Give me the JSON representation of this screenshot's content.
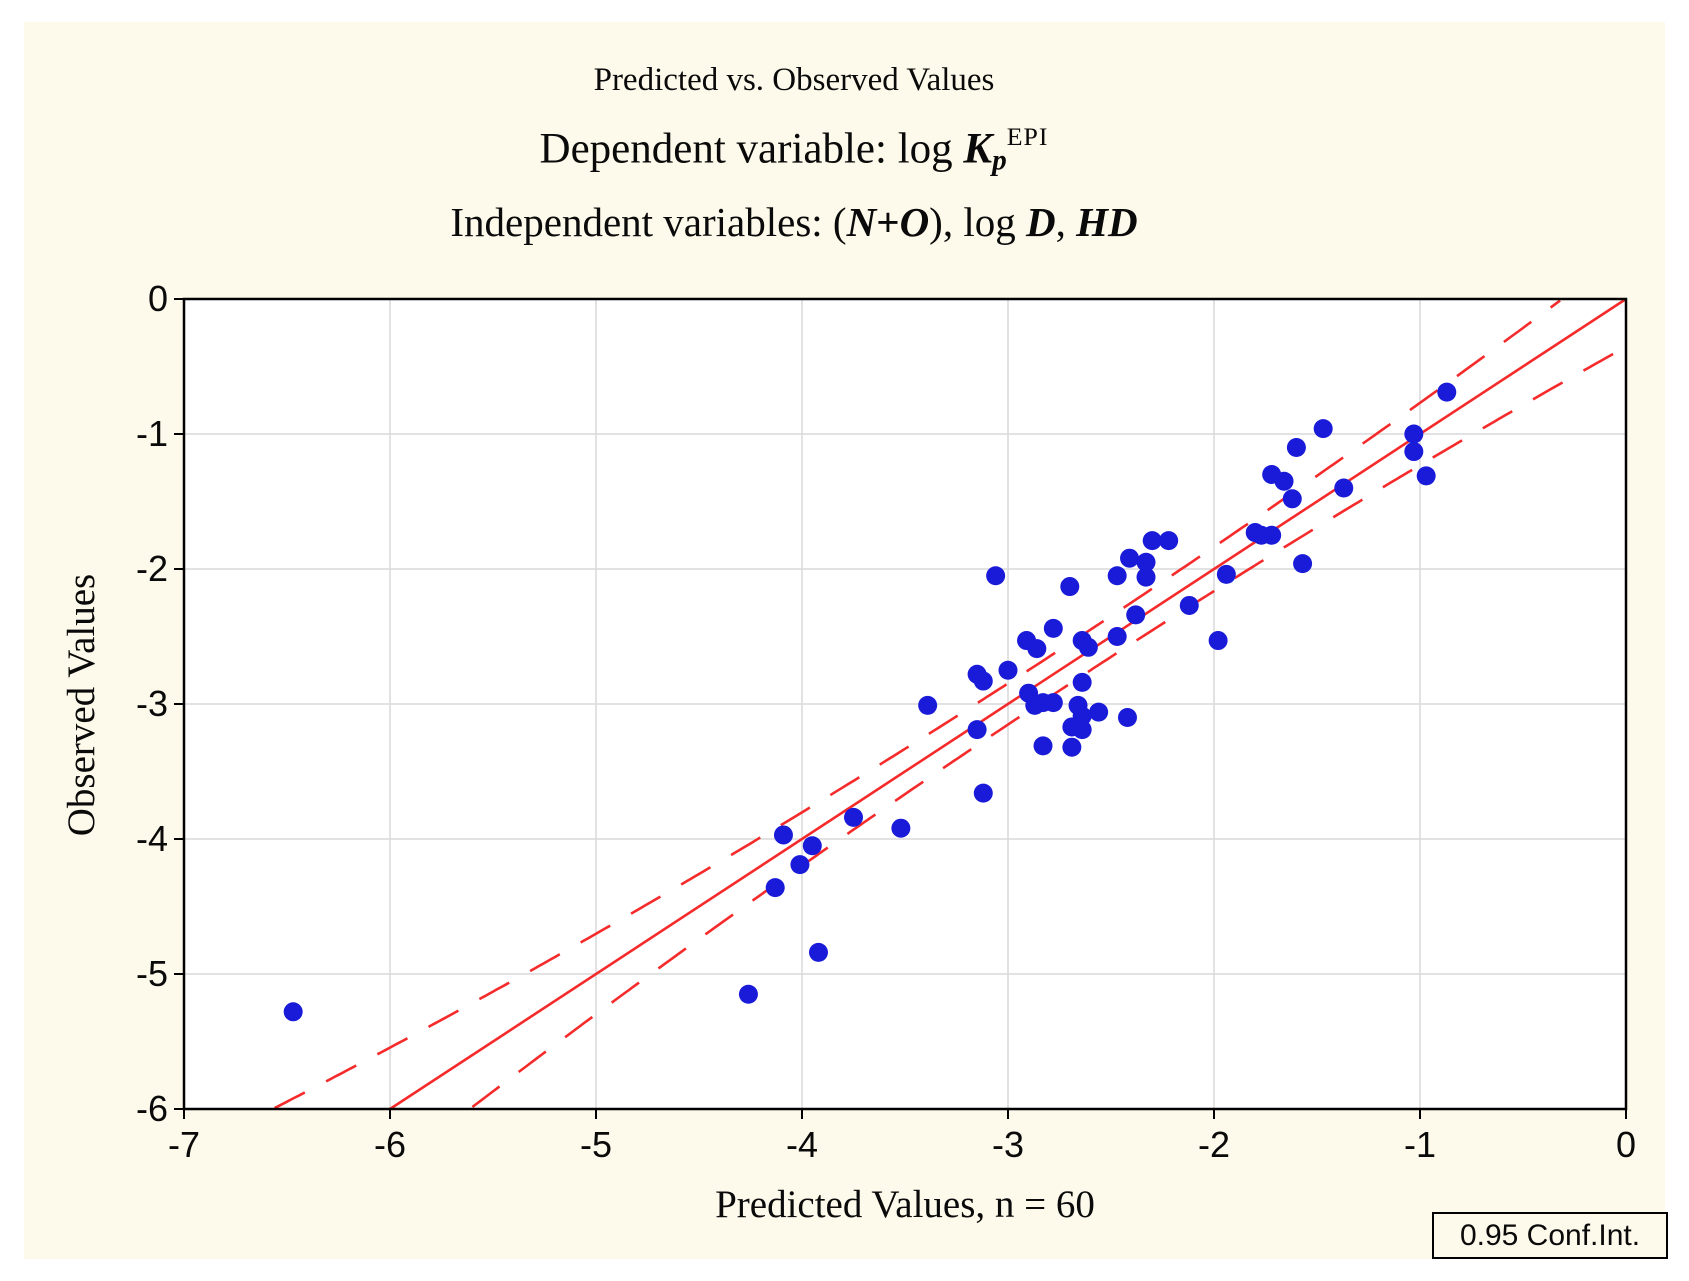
{
  "page": {
    "background": "#ffffff",
    "panel_background": "#FDF9EB"
  },
  "titles": {
    "line1": "Predicted vs. Observed Values",
    "line2_segments": [
      {
        "t": "Dependent variable: log ",
        "s": "n"
      },
      {
        "t": "K",
        "s": "bi"
      },
      {
        "t": "p",
        "s": "sub"
      },
      {
        "t": "EPI",
        "s": "sup"
      }
    ],
    "line3_segments": [
      {
        "t": "Independent variables: (",
        "s": "n"
      },
      {
        "t": "N",
        "s": "bi"
      },
      {
        "t": "+",
        "s": "b"
      },
      {
        "t": "O",
        "s": "bi"
      },
      {
        "t": "), log ",
        "s": "n"
      },
      {
        "t": "D",
        "s": "bi"
      },
      {
        "t": ", ",
        "s": "n"
      },
      {
        "t": "HD",
        "s": "bi"
      }
    ]
  },
  "legend": {
    "label": "0.95 Conf.Int."
  },
  "chart_data": {
    "type": "scatter",
    "title": "Predicted vs. Observed Values",
    "subtitle1": "Dependent variable: log Kp^EPI",
    "subtitle2": "Independent variables: (N+O), log D, HD",
    "xlabel": "Predicted Values, n = 60",
    "ylabel": "Observed Values",
    "n": 60,
    "xlim": [
      -7,
      0
    ],
    "ylim": [
      -6,
      0
    ],
    "x_ticks": [
      -7,
      -6,
      -5,
      -4,
      -3,
      -2,
      -1,
      0
    ],
    "y_ticks": [
      0,
      -1,
      -2,
      -3,
      -4,
      -5,
      -6
    ],
    "grid": true,
    "grid_color": "#d9d9d9",
    "point_color": "#1a1ad9",
    "line_color": "#f52b2b",
    "points": [
      [
        -6.47,
        -5.28
      ],
      [
        -4.26,
        -5.15
      ],
      [
        -3.92,
        -4.84
      ],
      [
        -4.13,
        -4.36
      ],
      [
        -4.01,
        -4.19
      ],
      [
        -3.95,
        -4.05
      ],
      [
        -4.09,
        -3.97
      ],
      [
        -3.52,
        -3.92
      ],
      [
        -3.75,
        -3.84
      ],
      [
        -3.12,
        -3.66
      ],
      [
        -3.39,
        -3.01
      ],
      [
        -3.15,
        -3.19
      ],
      [
        -3.12,
        -2.83
      ],
      [
        -3.15,
        -2.78
      ],
      [
        -3.06,
        -2.05
      ],
      [
        -3.0,
        -2.75
      ],
      [
        -2.91,
        -2.53
      ],
      [
        -2.9,
        -2.92
      ],
      [
        -2.87,
        -3.01
      ],
      [
        -2.86,
        -2.59
      ],
      [
        -2.83,
        -2.99
      ],
      [
        -2.83,
        -3.31
      ],
      [
        -2.78,
        -2.44
      ],
      [
        -2.78,
        -2.99
      ],
      [
        -2.7,
        -2.13
      ],
      [
        -2.69,
        -3.17
      ],
      [
        -2.69,
        -3.32
      ],
      [
        -2.66,
        -3.01
      ],
      [
        -2.64,
        -2.53
      ],
      [
        -2.64,
        -2.84
      ],
      [
        -2.64,
        -3.09
      ],
      [
        -2.64,
        -3.19
      ],
      [
        -2.61,
        -2.58
      ],
      [
        -2.56,
        -3.06
      ],
      [
        -2.47,
        -2.05
      ],
      [
        -2.47,
        -2.5
      ],
      [
        -2.42,
        -3.1
      ],
      [
        -2.41,
        -1.92
      ],
      [
        -2.38,
        -2.34
      ],
      [
        -2.33,
        -1.95
      ],
      [
        -2.33,
        -2.06
      ],
      [
        -2.3,
        -1.79
      ],
      [
        -2.22,
        -1.79
      ],
      [
        -2.12,
        -2.27
      ],
      [
        -1.98,
        -2.53
      ],
      [
        -1.94,
        -2.04
      ],
      [
        -1.8,
        -1.73
      ],
      [
        -1.77,
        -1.75
      ],
      [
        -1.72,
        -1.3
      ],
      [
        -1.72,
        -1.75
      ],
      [
        -1.66,
        -1.35
      ],
      [
        -1.62,
        -1.48
      ],
      [
        -1.6,
        -1.1
      ],
      [
        -1.57,
        -1.96
      ],
      [
        -1.47,
        -0.96
      ],
      [
        -1.37,
        -1.4
      ],
      [
        -1.03,
        -1.0
      ],
      [
        -1.03,
        -1.13
      ],
      [
        -0.97,
        -1.31
      ],
      [
        -0.87,
        -0.69
      ]
    ],
    "fit_line": {
      "slope": 1,
      "intercept": 0
    },
    "conf_band": {
      "level": 0.95,
      "base": 0.15,
      "quad": 0.028,
      "center": -2.7,
      "style": "dashed"
    },
    "legend_label": "0.95 Conf.Int."
  }
}
